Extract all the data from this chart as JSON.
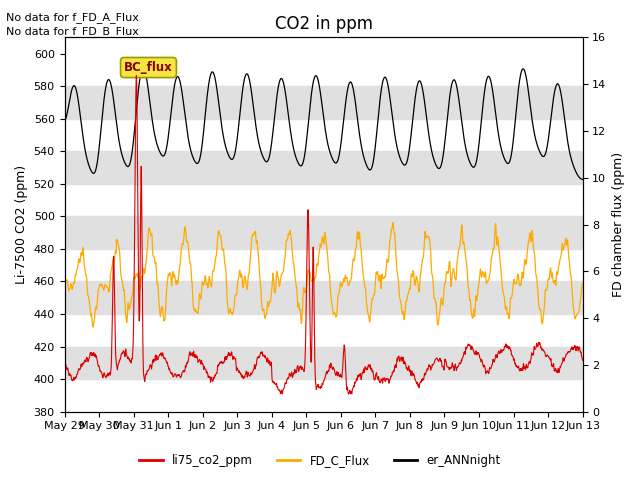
{
  "title": "CO2 in ppm",
  "ylabel_left": "Li-7500 CO2 (ppm)",
  "ylabel_right": "FD chamber flux (ppm)",
  "ylim_left": [
    380,
    610
  ],
  "ylim_right": [
    0,
    16
  ],
  "yticks_left": [
    380,
    400,
    420,
    440,
    460,
    480,
    500,
    520,
    540,
    560,
    580,
    600
  ],
  "yticks_right": [
    0,
    2,
    4,
    6,
    8,
    10,
    12,
    14,
    16
  ],
  "no_data_texts": [
    "No data for f_FD_A_Flux",
    "No data for f_FD_B_Flux"
  ],
  "bc_flux_label": "BC_flux",
  "legend_labels": [
    "li75_co2_ppm",
    "FD_C_Flux",
    "er_ANNnight"
  ],
  "line_colors": [
    "#dd0000",
    "#ffaa00",
    "#000000"
  ],
  "background_color": "#ffffff",
  "band_color": "#e0e0e0",
  "xticklabels": [
    "May 29",
    "May 30",
    "May 31",
    "Jun 1",
    "Jun 2",
    "Jun 3",
    "Jun 4",
    "Jun 5",
    "Jun 6",
    "Jun 7",
    "Jun 8",
    "Jun 9",
    "Jun 10",
    "Jun 11",
    "Jun 12",
    "Jun 13"
  ],
  "n_points": 4320,
  "title_fontsize": 12,
  "label_fontsize": 9,
  "tick_fontsize": 8,
  "annotation_fontsize": 8
}
